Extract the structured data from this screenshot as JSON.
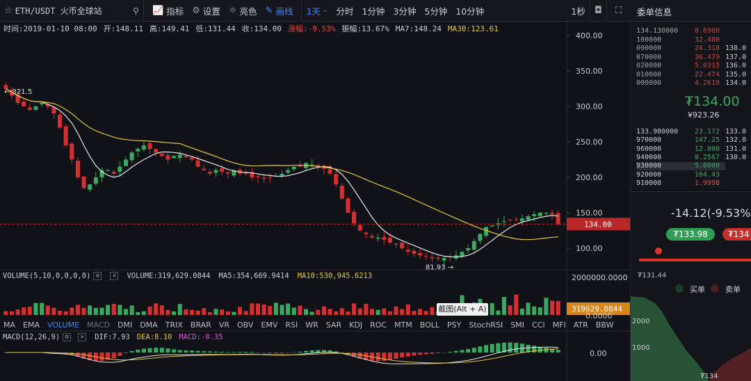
{
  "toolbar": {
    "symbol": "ETH/USDT 火币全球站",
    "indicators": "指标",
    "settings": "设置",
    "theme": "亮色",
    "draw": "画线",
    "period_selected": "1天",
    "periods": [
      "分时",
      "1分钟",
      "3分钟",
      "5分钟",
      "10分钟"
    ],
    "refresh": "1秒"
  },
  "info": {
    "time": "时间:2019-01-10 08:00",
    "open": "开:148.11",
    "high": "高:149.41",
    "low": "低:131.44",
    "close": "收:134.00",
    "change": "涨幅:-9.53%",
    "amplitude": "振幅:13.67%",
    "ma7": "MA7:148.24",
    "ma30": "MA30:123.61"
  },
  "price_axis": {
    "labels": [
      "400.00",
      "350.00",
      "300.00",
      "250.00",
      "200.00",
      "150.00",
      "100.00"
    ],
    "current": "134.00"
  },
  "markers": {
    "high": "← 321.5",
    "low": "81.93 →"
  },
  "volume": {
    "title": "VOLUME(5,10,0,0,0,0)",
    "value": "VOLUME:319,629.0844",
    "ma5": "MA5:354,669.9414",
    "ma10": "MA10:530,945.6213",
    "axis_top": "2000000.0000",
    "axis_current": "319629.0844",
    "axis_zero": "0.0000"
  },
  "indicator_tabs": [
    "MA",
    "EMA",
    "VOLUME",
    "MACD",
    "DMI",
    "DMA",
    "TRIX",
    "BRAR",
    "VR",
    "OBV",
    "EMV",
    "RSI",
    "WR",
    "SAR",
    "KDJ",
    "ROC",
    "MTM",
    "BOLL",
    "PSY",
    "StochRSI",
    "SMI",
    "CCI",
    "MFI",
    "ATR",
    "BBW"
  ],
  "screenshot_tip": "截图(Alt + A)",
  "macd": {
    "title": "MACD(12,26,9)",
    "dif": "DIF:7.93",
    "dea": "DEA:8.10",
    "macd": "MACD:-0.35",
    "axis_zero": "0.00"
  },
  "orderbook": {
    "title": "委单信息",
    "asks": [
      {
        "price": "134.130000",
        "amount": "0.6900",
        "total": ""
      },
      {
        "price": "100000",
        "amount": "32.480",
        "total": ""
      },
      {
        "price": "090000",
        "amount": "24.318",
        "total": "138.0"
      },
      {
        "price": "070000",
        "amount": "36.479",
        "total": "137.0"
      },
      {
        "price": "020000",
        "amount": "5.0315",
        "total": "136.0"
      },
      {
        "price": "010000",
        "amount": "22.474",
        "total": "135.0"
      },
      {
        "price": "000000",
        "amount": "4.2610",
        "total": "134.0"
      }
    ],
    "last_price": "₮134.00",
    "last_cny": "¥923.26",
    "bids": [
      {
        "price": "133.980000",
        "amount": "23.172",
        "total": "133.0"
      },
      {
        "price": "970000",
        "amount": "147.25",
        "total": "132.0"
      },
      {
        "price": "960000",
        "amount": "12.000",
        "total": "131.0"
      },
      {
        "price": "940000",
        "amount": "0.2567",
        "total": "130.0"
      },
      {
        "price": "930000",
        "amount": "5.0000",
        "total": ""
      },
      {
        "price": "920000",
        "amount": "104.43",
        "total": ""
      },
      {
        "price": "910000",
        "amount": "1.9998",
        "total": ""
      }
    ],
    "change_line": "-14.12(-9.53%)",
    "buy_price": "₮133.98",
    "sell_price": "₮134",
    "low_label": "₮131.44",
    "buy_label": "买单",
    "sell_label": "卖单",
    "depth_axis": [
      "2000",
      "1000"
    ],
    "depth_bottom": "₮134"
  },
  "colors": {
    "up": "#3ba861",
    "down": "#d62f2f",
    "ma7": "#e8e8e8",
    "ma30": "#e3c83a",
    "accent": "#3d86f7"
  },
  "chart_data": {
    "type": "candlestick",
    "title": "ETH/USDT 1天",
    "ylim": [
      75,
      410
    ],
    "close_series_approx": [
      325,
      315,
      305,
      300,
      295,
      300,
      305,
      300,
      290,
      270,
      245,
      225,
      200,
      185,
      190,
      200,
      210,
      210,
      205,
      215,
      225,
      235,
      240,
      245,
      240,
      235,
      230,
      225,
      230,
      232,
      228,
      225,
      215,
      210,
      205,
      210,
      208,
      205,
      210,
      205,
      205,
      200,
      200,
      198,
      200,
      202,
      205,
      210,
      215,
      215,
      220,
      218,
      215,
      212,
      205,
      190,
      170,
      150,
      135,
      125,
      120,
      115,
      115,
      112,
      108,
      105,
      100,
      95,
      92,
      90,
      88,
      86,
      85,
      86,
      88,
      90,
      95,
      100,
      110,
      120,
      130,
      132,
      135,
      138,
      140,
      140,
      142,
      145,
      148,
      150,
      150,
      148,
      134
    ]
  }
}
